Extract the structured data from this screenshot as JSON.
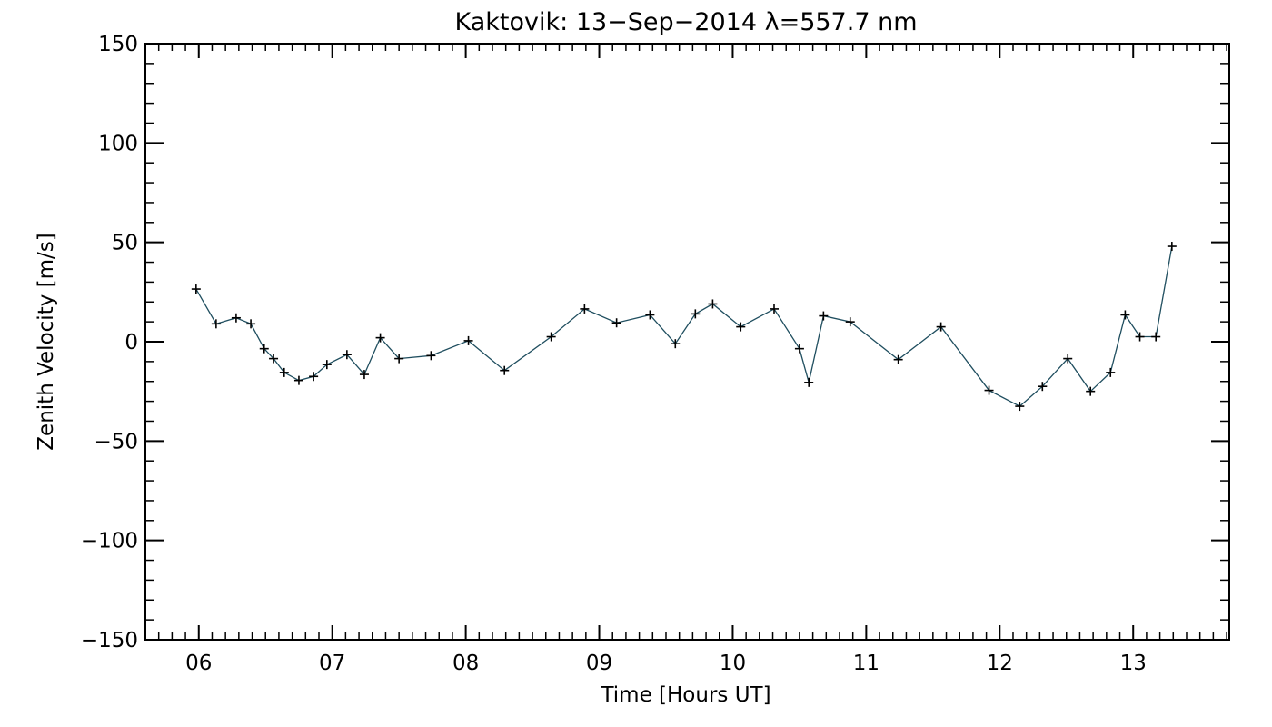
{
  "colors": {
    "background": "#ffffff",
    "axes": "#000000",
    "line": "#1f4e5f",
    "marker": "#000000"
  },
  "chart_data": {
    "type": "line",
    "title": "Kaktovik: 13−Sep−2014 λ=557.7 nm",
    "xlabel": "Time [Hours UT]",
    "ylabel": "Zenith Velocity [m/s]",
    "xlim": [
      5.6,
      13.72
    ],
    "ylim": [
      -150,
      150
    ],
    "x_ticks": [
      6,
      7,
      8,
      9,
      10,
      11,
      12,
      13
    ],
    "x_tick_labels": [
      "06",
      "07",
      "08",
      "09",
      "10",
      "11",
      "12",
      "13"
    ],
    "y_ticks": [
      -150,
      -100,
      -50,
      0,
      50,
      100,
      150
    ],
    "y_tick_labels": [
      "−150",
      "−100",
      "−50",
      "0",
      "50",
      "100",
      "150"
    ],
    "grid": false,
    "marker": "plus",
    "series": [
      {
        "x": [
          5.98,
          6.13,
          6.28,
          6.39,
          6.49,
          6.56,
          6.64,
          6.75,
          6.86,
          6.96,
          7.11,
          7.24,
          7.36,
          7.5,
          7.74,
          8.02,
          8.29,
          8.64,
          8.89,
          9.13,
          9.38,
          9.57,
          9.72,
          9.85,
          10.06,
          10.31,
          10.5,
          10.57,
          10.68,
          10.88,
          11.24,
          11.56,
          11.92,
          12.15,
          12.32,
          12.51,
          12.68,
          12.83,
          12.94,
          13.05,
          13.17,
          13.29
        ],
        "y": [
          26.5,
          9.0,
          12.0,
          9.0,
          -3.5,
          -8.5,
          -15.5,
          -19.5,
          -17.5,
          -11.5,
          -6.5,
          -16.5,
          2.0,
          -8.5,
          -7.0,
          0.5,
          -14.5,
          2.5,
          16.5,
          9.5,
          13.5,
          -1.0,
          14.0,
          19.0,
          7.5,
          16.5,
          -3.5,
          -20.5,
          13.0,
          10.0,
          -9.0,
          7.5,
          -24.5,
          -32.5,
          -22.5,
          -8.5,
          -25.0,
          -15.5,
          13.5,
          2.5,
          2.5,
          48.0
        ]
      }
    ]
  }
}
